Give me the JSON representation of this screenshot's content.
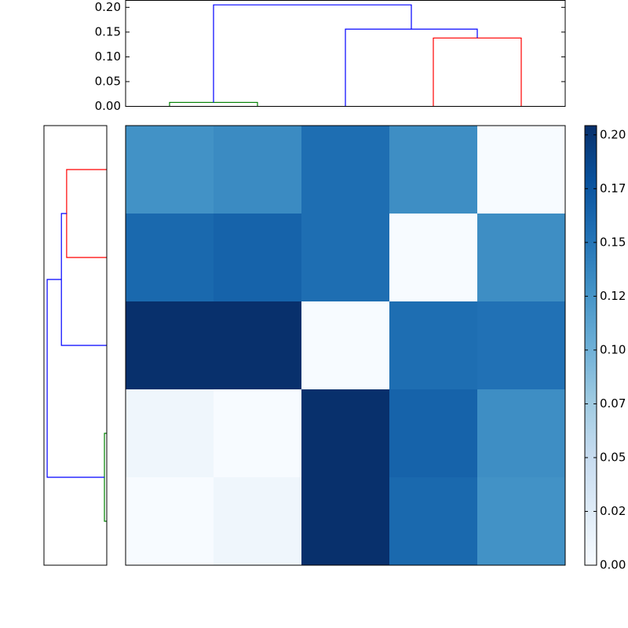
{
  "chart_data": [
    {
      "type": "dendrogram",
      "orientation": "top",
      "ylim": [
        0,
        0.214
      ],
      "yticks": [
        {
          "value": 0,
          "label": "0.00"
        },
        {
          "value": 0.05,
          "label": "0.05"
        },
        {
          "value": 0.1,
          "label": "0.10"
        },
        {
          "value": 0.15,
          "label": "0.15"
        },
        {
          "value": 0.2,
          "label": "0.20"
        }
      ],
      "links": [
        {
          "color": "#008000",
          "x": [
            0,
            0,
            1,
            1
          ],
          "y": [
            0,
            0.008,
            0.008,
            0
          ]
        },
        {
          "color": "#ff0000",
          "x": [
            3,
            3,
            4,
            4
          ],
          "y": [
            0,
            0.138,
            0.138,
            0
          ]
        },
        {
          "color": "#0000ff",
          "x": [
            2,
            2,
            3.5,
            3.5
          ],
          "y": [
            0,
            0.156,
            0.156,
            0.138
          ]
        },
        {
          "color": "#0000ff",
          "x": [
            0.5,
            0.5,
            2.75,
            2.75
          ],
          "y": [
            0.008,
            0.205,
            0.205,
            0.156
          ]
        }
      ]
    },
    {
      "type": "dendrogram",
      "orientation": "left",
      "xlim": [
        0,
        0.216
      ],
      "links": [
        {
          "color": "#ff0000",
          "x": [
            0,
            0,
            1,
            1
          ],
          "y": [
            0,
            0.138,
            0.138,
            0
          ]
        },
        {
          "color": "#0000ff",
          "x": [
            0.5,
            0.5,
            2,
            2
          ],
          "y": [
            0.138,
            0.156,
            0.156,
            0
          ]
        },
        {
          "color": "#008000",
          "x": [
            3,
            3,
            4,
            4
          ],
          "y": [
            0,
            0.008,
            0.008,
            0
          ]
        },
        {
          "color": "#0000ff",
          "x": [
            1.25,
            1.25,
            3.5,
            3.5
          ],
          "y": [
            0.156,
            0.205,
            0.205,
            0.008
          ]
        }
      ]
    },
    {
      "type": "heatmap",
      "colormap": "Blues",
      "values": [
        [
          0.128,
          0.133,
          0.156,
          0.131,
          0.0
        ],
        [
          0.16,
          0.164,
          0.156,
          0.0,
          0.131
        ],
        [
          0.204,
          0.204,
          0.0,
          0.156,
          0.153
        ],
        [
          0.008,
          0.0,
          0.204,
          0.164,
          0.131
        ],
        [
          0.0,
          0.008,
          0.204,
          0.16,
          0.128
        ]
      ],
      "clim": [
        0,
        0.2043
      ],
      "cticks": [
        {
          "value": 0,
          "label": "0.00"
        },
        {
          "value": 0.025,
          "label": "0.02"
        },
        {
          "value": 0.05,
          "label": "0.05"
        },
        {
          "value": 0.075,
          "label": "0.07"
        },
        {
          "value": 0.1,
          "label": "0.10"
        },
        {
          "value": 0.125,
          "label": "0.12"
        },
        {
          "value": 0.15,
          "label": "0.15"
        },
        {
          "value": 0.175,
          "label": "0.17"
        },
        {
          "value": 0.2,
          "label": "0.20"
        }
      ]
    }
  ]
}
